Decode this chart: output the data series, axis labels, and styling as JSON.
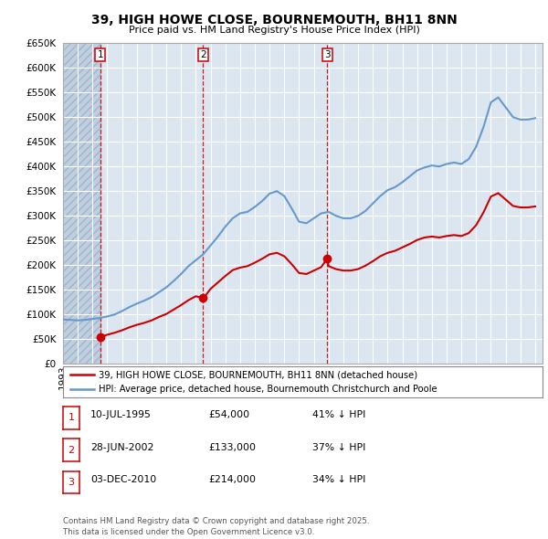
{
  "title": "39, HIGH HOWE CLOSE, BOURNEMOUTH, BH11 8NN",
  "subtitle": "Price paid vs. HM Land Registry's House Price Index (HPI)",
  "ylim": [
    0,
    650000
  ],
  "yticks": [
    0,
    50000,
    100000,
    150000,
    200000,
    250000,
    300000,
    350000,
    400000,
    450000,
    500000,
    550000,
    600000,
    650000
  ],
  "ytick_labels": [
    "£0",
    "£50K",
    "£100K",
    "£150K",
    "£200K",
    "£250K",
    "£300K",
    "£350K",
    "£400K",
    "£450K",
    "£500K",
    "£550K",
    "£600K",
    "£650K"
  ],
  "xlim_start": 1993.0,
  "xlim_end": 2025.5,
  "background_color": "#ffffff",
  "plot_bg_color": "#dce6f1",
  "grid_color": "#ffffff",
  "hatch_color": "#c0cfe0",
  "hatch_end_year": 1995.54,
  "sale_dates_num": [
    1995.52,
    2002.49,
    2010.92
  ],
  "sale_prices": [
    54000,
    133000,
    214000
  ],
  "sale_labels": [
    "1",
    "2",
    "3"
  ],
  "sale_date_strs": [
    "10-JUL-1995",
    "28-JUN-2002",
    "03-DEC-2010"
  ],
  "sale_price_strs": [
    "£54,000",
    "£133,000",
    "£214,000"
  ],
  "sale_pct_strs": [
    "41% ↓ HPI",
    "37% ↓ HPI",
    "34% ↓ HPI"
  ],
  "red_line_color": "#cc0000",
  "blue_line_color": "#6699cc",
  "annotation_box_color": "#cc0000",
  "hpi_line_x": [
    1993.0,
    1993.5,
    1994.0,
    1994.5,
    1995.0,
    1995.5,
    1996.0,
    1996.5,
    1997.0,
    1997.5,
    1998.0,
    1998.5,
    1999.0,
    1999.5,
    2000.0,
    2000.5,
    2001.0,
    2001.5,
    2002.0,
    2002.5,
    2003.0,
    2003.5,
    2004.0,
    2004.5,
    2005.0,
    2005.5,
    2006.0,
    2006.5,
    2007.0,
    2007.5,
    2008.0,
    2008.5,
    2009.0,
    2009.5,
    2010.0,
    2010.5,
    2011.0,
    2011.5,
    2012.0,
    2012.5,
    2013.0,
    2013.5,
    2014.0,
    2014.5,
    2015.0,
    2015.5,
    2016.0,
    2016.5,
    2017.0,
    2017.5,
    2018.0,
    2018.5,
    2019.0,
    2019.5,
    2020.0,
    2020.5,
    2021.0,
    2021.5,
    2022.0,
    2022.5,
    2023.0,
    2023.5,
    2024.0,
    2024.5,
    2025.0
  ],
  "hpi_line_y": [
    90000,
    89000,
    88000,
    89000,
    91000,
    93000,
    96000,
    100000,
    107000,
    115000,
    122000,
    128000,
    135000,
    145000,
    155000,
    168000,
    182000,
    198000,
    210000,
    222000,
    240000,
    258000,
    278000,
    295000,
    305000,
    308000,
    318000,
    330000,
    345000,
    350000,
    340000,
    315000,
    288000,
    285000,
    295000,
    305000,
    308000,
    300000,
    295000,
    295000,
    300000,
    310000,
    325000,
    340000,
    352000,
    358000,
    368000,
    380000,
    392000,
    398000,
    402000,
    400000,
    405000,
    408000,
    405000,
    415000,
    440000,
    480000,
    530000,
    540000,
    520000,
    500000,
    495000,
    495000,
    498000
  ],
  "red_line_x": [
    1995.52,
    1995.7,
    1996.0,
    1996.5,
    1997.0,
    1997.5,
    1998.0,
    1998.5,
    1999.0,
    1999.5,
    2000.0,
    2000.5,
    2001.0,
    2001.5,
    2002.0,
    2002.49,
    2002.7,
    2003.0,
    2003.5,
    2004.0,
    2004.5,
    2005.0,
    2005.5,
    2006.0,
    2006.5,
    2007.0,
    2007.5,
    2008.0,
    2008.5,
    2009.0,
    2009.5,
    2010.0,
    2010.5,
    2010.92,
    2011.0,
    2011.5,
    2012.0,
    2012.5,
    2013.0,
    2013.5,
    2014.0,
    2014.5,
    2015.0,
    2015.5,
    2016.0,
    2016.5,
    2017.0,
    2017.5,
    2018.0,
    2018.5,
    2019.0,
    2019.5,
    2020.0,
    2020.5,
    2021.0,
    2021.5,
    2022.0,
    2022.5,
    2023.0,
    2023.5,
    2024.0,
    2024.5,
    2025.0
  ],
  "red_line_y": [
    54000,
    56000,
    59000,
    63000,
    68000,
    74000,
    79000,
    83000,
    88000,
    95000,
    101000,
    110000,
    119000,
    129000,
    137000,
    133000,
    140000,
    152000,
    165000,
    178000,
    190000,
    195000,
    198000,
    205000,
    213000,
    222000,
    225000,
    218000,
    202000,
    184000,
    182000,
    189000,
    196000,
    214000,
    198000,
    192000,
    189000,
    189000,
    192000,
    199000,
    208000,
    218000,
    225000,
    229000,
    236000,
    243000,
    251000,
    256000,
    258000,
    256000,
    259000,
    261000,
    259000,
    265000,
    281000,
    307000,
    339000,
    346000,
    333000,
    320000,
    317000,
    317000,
    319000
  ],
  "footer_text": "Contains HM Land Registry data © Crown copyright and database right 2025.\nThis data is licensed under the Open Government Licence v3.0.",
  "legend_label_red": "39, HIGH HOWE CLOSE, BOURNEMOUTH, BH11 8NN (detached house)",
  "legend_label_blue": "HPI: Average price, detached house, Bournemouth Christchurch and Poole"
}
